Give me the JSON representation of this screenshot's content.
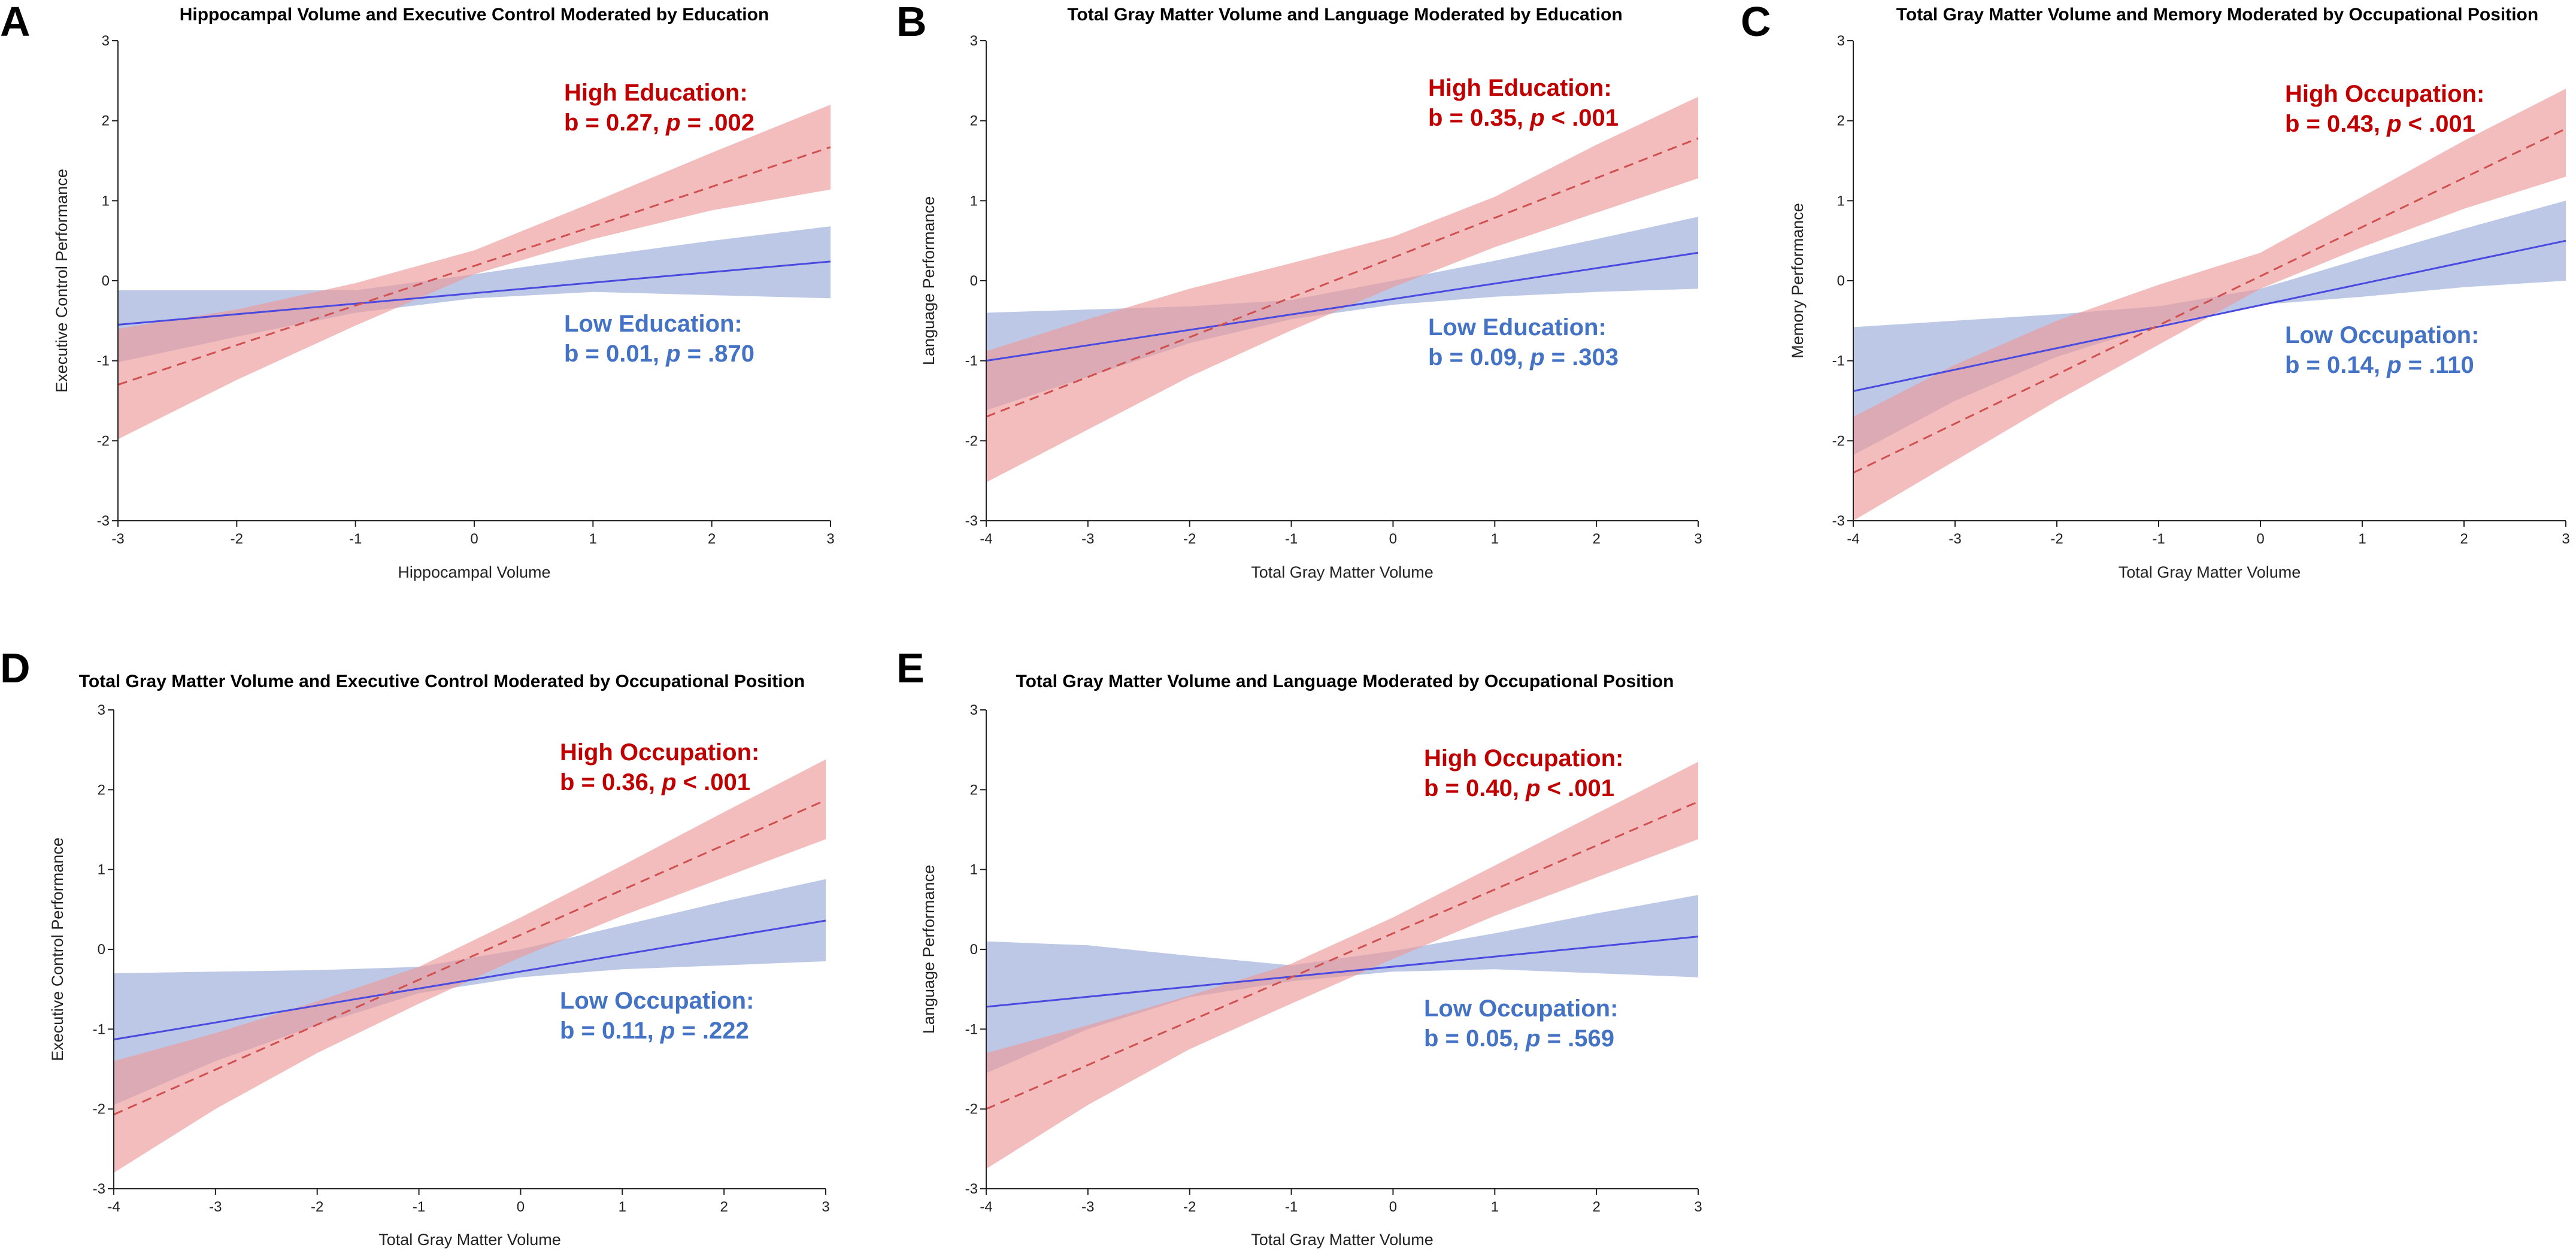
{
  "figure": {
    "background": "#ffffff",
    "colors": {
      "high_line": "#d05050",
      "high_band": "#ec9a9a",
      "high_text": "#c00000",
      "low_line": "#4a4ae0",
      "low_band": "#8fa3d6",
      "low_text": "#4472c4",
      "axis": "#222222"
    }
  },
  "chart_data": [
    {
      "panel": "A",
      "type": "line",
      "title": "Hippocampal Volume and Executive Control Moderated by Education",
      "xlabel": "Hippocampal Volume",
      "ylabel": "Executive Control Performance",
      "xlim": [
        -3,
        3
      ],
      "ylim": [
        -3,
        3
      ],
      "xticks": [
        -3,
        -2,
        -1,
        0,
        1,
        2,
        3
      ],
      "yticks": [
        -3,
        -2,
        -1,
        0,
        1,
        2,
        3
      ],
      "series": [
        {
          "name": "High Education",
          "line_style": "dashed",
          "x": [
            -3,
            3
          ],
          "y": [
            -1.3,
            1.67
          ],
          "ci_x": [
            -3,
            -2,
            -1,
            0,
            1,
            2,
            3
          ],
          "ci_lower": [
            -1.98,
            -1.24,
            -0.56,
            0.08,
            0.52,
            0.88,
            1.14
          ],
          "ci_upper": [
            -0.6,
            -0.36,
            -0.03,
            0.38,
            0.98,
            1.6,
            2.2
          ],
          "label_line1": "High Education:",
          "label_b": "b = 0.27, ",
          "label_p_letter": "p",
          "label_p_value": " = .002"
        },
        {
          "name": "Low Education",
          "line_style": "solid",
          "x": [
            -3,
            3
          ],
          "y": [
            -0.55,
            0.24
          ],
          "ci_x": [
            -3,
            -2,
            -1,
            0,
            1,
            2,
            3
          ],
          "ci_lower": [
            -1.02,
            -0.7,
            -0.4,
            -0.22,
            -0.14,
            -0.18,
            -0.22
          ],
          "ci_upper": [
            -0.12,
            -0.12,
            -0.12,
            0.08,
            0.3,
            0.5,
            0.68
          ],
          "label_line1": "Low Education:",
          "label_b": "b = 0.01, ",
          "label_p_letter": "p",
          "label_p_value": " = .870"
        }
      ]
    },
    {
      "panel": "B",
      "type": "line",
      "title": "Total Gray Matter Volume and Language Moderated by Education",
      "xlabel": "Total Gray Matter Volume",
      "ylabel": "Language Performance",
      "xlim": [
        -4,
        3
      ],
      "ylim": [
        -3,
        3
      ],
      "xticks": [
        -4,
        -3,
        -2,
        -1,
        0,
        1,
        2,
        3
      ],
      "yticks": [
        -3,
        -2,
        -1,
        0,
        1,
        2,
        3
      ],
      "series": [
        {
          "name": "High Education",
          "line_style": "dashed",
          "x": [
            -4,
            3
          ],
          "y": [
            -1.7,
            1.78
          ],
          "ci_x": [
            -4,
            -3,
            -2,
            -1,
            0,
            1,
            2,
            3
          ],
          "ci_lower": [
            -2.52,
            -1.86,
            -1.2,
            -0.62,
            -0.08,
            0.42,
            0.85,
            1.28
          ],
          "ci_upper": [
            -0.88,
            -0.48,
            -0.1,
            0.22,
            0.55,
            1.05,
            1.7,
            2.3
          ],
          "label_line1": "High Education:",
          "label_b": "b = 0.35, ",
          "label_p_letter": "p",
          "label_p_value": " < .001"
        },
        {
          "name": "Low Education",
          "line_style": "solid",
          "x": [
            -4,
            3
          ],
          "y": [
            -1.0,
            0.35
          ],
          "ci_x": [
            -4,
            -3,
            -2,
            -1,
            0,
            1,
            2,
            3
          ],
          "ci_lower": [
            -1.62,
            -1.2,
            -0.78,
            -0.48,
            -0.3,
            -0.2,
            -0.14,
            -0.1
          ],
          "ci_upper": [
            -0.4,
            -0.36,
            -0.32,
            -0.24,
            0.0,
            0.25,
            0.52,
            0.8
          ],
          "label_line1": "Low Education:",
          "label_b": "b = 0.09, ",
          "label_p_letter": "p",
          "label_p_value": " = .303"
        }
      ]
    },
    {
      "panel": "C",
      "type": "line",
      "title": "Total Gray Matter Volume and Memory Moderated by Occupational Position",
      "xlabel": "Total Gray Matter Volume",
      "ylabel": "Memory Performance",
      "xlim": [
        -4,
        3
      ],
      "ylim": [
        -3,
        3
      ],
      "xticks": [
        -4,
        -3,
        -2,
        -1,
        0,
        1,
        2,
        3
      ],
      "yticks": [
        -3,
        -2,
        -1,
        0,
        1,
        2,
        3
      ],
      "series": [
        {
          "name": "High Occupation",
          "line_style": "dashed",
          "x": [
            -4,
            3
          ],
          "y": [
            -2.4,
            1.9
          ],
          "ci_x": [
            -4,
            -3,
            -2,
            -1,
            0,
            1,
            2,
            3
          ],
          "ci_lower": [
            -3.0,
            -2.25,
            -1.5,
            -0.8,
            -0.1,
            0.42,
            0.9,
            1.3
          ],
          "ci_upper": [
            -1.7,
            -1.05,
            -0.5,
            -0.05,
            0.35,
            1.05,
            1.75,
            2.4
          ],
          "label_line1": "High Occupation:",
          "label_b": "b = 0.43, ",
          "label_p_letter": "p",
          "label_p_value": " < .001"
        },
        {
          "name": "Low Occupation",
          "line_style": "solid",
          "x": [
            -4,
            3
          ],
          "y": [
            -1.38,
            0.5
          ],
          "ci_x": [
            -4,
            -3,
            -2,
            -1,
            0,
            1,
            2,
            3
          ],
          "ci_lower": [
            -2.18,
            -1.5,
            -0.95,
            -0.55,
            -0.3,
            -0.2,
            -0.08,
            0.0
          ],
          "ci_upper": [
            -0.58,
            -0.5,
            -0.42,
            -0.32,
            -0.1,
            0.28,
            0.65,
            1.0
          ],
          "label_line1": "Low Occupation:",
          "label_b": "b = 0.14, ",
          "label_p_letter": "p",
          "label_p_value": " = .110"
        }
      ]
    },
    {
      "panel": "D",
      "type": "line",
      "title": "Total Gray Matter Volume and Executive Control Moderated by Occupational Position",
      "xlabel": "Total Gray Matter Volume",
      "ylabel": "Executive Control Performance",
      "xlim": [
        -4,
        3
      ],
      "ylim": [
        -3,
        3
      ],
      "xticks": [
        -4,
        -3,
        -2,
        -1,
        0,
        1,
        2,
        3
      ],
      "yticks": [
        -3,
        -2,
        -1,
        0,
        1,
        2,
        3
      ],
      "series": [
        {
          "name": "High Occupation",
          "line_style": "dashed",
          "x": [
            -4,
            3
          ],
          "y": [
            -2.07,
            1.87
          ],
          "ci_x": [
            -4,
            -3,
            -2,
            -1,
            0,
            1,
            2,
            3
          ],
          "ci_lower": [
            -2.8,
            -2.0,
            -1.3,
            -0.68,
            -0.1,
            0.42,
            0.9,
            1.38
          ],
          "ci_upper": [
            -1.4,
            -1.05,
            -0.65,
            -0.22,
            0.4,
            1.05,
            1.72,
            2.38
          ],
          "label_line1": "High Occupation:",
          "label_b": "b = 0.36, ",
          "label_p_letter": "p",
          "label_p_value": " < .001"
        },
        {
          "name": "Low Occupation",
          "line_style": "solid",
          "x": [
            -4,
            3
          ],
          "y": [
            -1.13,
            0.36
          ],
          "ci_x": [
            -4,
            -3,
            -2,
            -1,
            0,
            1,
            2,
            3
          ],
          "ci_lower": [
            -1.95,
            -1.4,
            -0.95,
            -0.55,
            -0.35,
            -0.25,
            -0.2,
            -0.15
          ],
          "ci_upper": [
            -0.3,
            -0.28,
            -0.26,
            -0.22,
            0.0,
            0.3,
            0.6,
            0.88
          ],
          "label_line1": "Low Occupation:",
          "label_b": "b = 0.11, ",
          "label_p_letter": "p",
          "label_p_value": " = .222"
        }
      ]
    },
    {
      "panel": "E",
      "type": "line",
      "title": "Total Gray Matter Volume and Language Moderated by Occupational Position",
      "xlabel": "Total Gray Matter Volume",
      "ylabel": "Language Performance",
      "xlim": [
        -4,
        3
      ],
      "ylim": [
        -3,
        3
      ],
      "xticks": [
        -4,
        -3,
        -2,
        -1,
        0,
        1,
        2,
        3
      ],
      "yticks": [
        -3,
        -2,
        -1,
        0,
        1,
        2,
        3
      ],
      "series": [
        {
          "name": "High Occupation",
          "line_style": "dashed",
          "x": [
            -4,
            3
          ],
          "y": [
            -2.0,
            1.85
          ],
          "ci_x": [
            -4,
            -3,
            -2,
            -1,
            0,
            1,
            2,
            3
          ],
          "ci_lower": [
            -2.75,
            -1.95,
            -1.25,
            -0.68,
            -0.12,
            0.42,
            0.9,
            1.38
          ],
          "ci_upper": [
            -1.3,
            -0.95,
            -0.58,
            -0.18,
            0.4,
            1.05,
            1.7,
            2.35
          ],
          "label_line1": "High Occupation:",
          "label_b": "b = 0.40, ",
          "label_p_letter": "p",
          "label_p_value": " < .001"
        },
        {
          "name": "Low Occupation",
          "line_style": "solid",
          "x": [
            -4,
            3
          ],
          "y": [
            -0.72,
            0.16
          ],
          "ci_x": [
            -4,
            -3,
            -2,
            -1,
            0,
            1,
            2,
            3
          ],
          "ci_lower": [
            -1.55,
            -1.0,
            -0.6,
            -0.4,
            -0.28,
            -0.25,
            -0.3,
            -0.35
          ],
          "ci_upper": [
            0.1,
            0.05,
            -0.08,
            -0.2,
            -0.02,
            0.2,
            0.45,
            0.68
          ],
          "label_line1": "Low Occupation:",
          "label_b": "b = 0.05, ",
          "label_p_letter": "p",
          "label_p_value": " = .569"
        }
      ]
    }
  ]
}
